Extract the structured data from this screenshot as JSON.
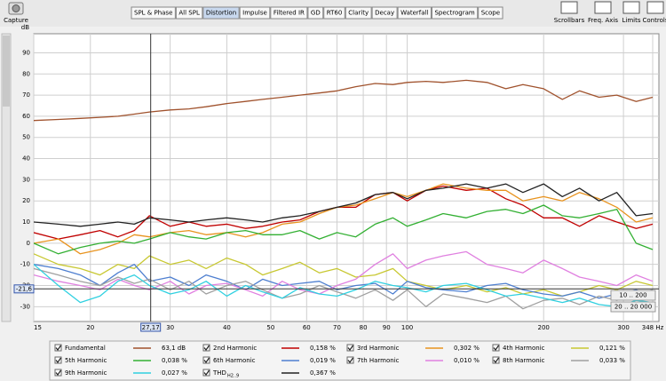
{
  "toolbar": {
    "capture": "Capture",
    "tabs": [
      "SPL & Phase",
      "All SPL",
      "Distortion",
      "Impulse",
      "Filtered IR",
      "GD",
      "RT60",
      "Clarity",
      "Decay",
      "Waterfall",
      "Spectrogram",
      "Scope"
    ],
    "active": 2,
    "tools": [
      "Scrollbars",
      "Freq. Axis",
      "Limits",
      "Controls"
    ]
  },
  "chart_data": {
    "type": "line",
    "ylabel": "dB",
    "log_x": true,
    "grid": true,
    "xlim": [
      15,
      348
    ],
    "ylim": [
      -37,
      99
    ],
    "xticks": [
      15,
      20,
      30,
      40,
      50,
      60,
      70,
      80,
      90,
      100,
      200,
      300,
      {
        "value": 348,
        "label": "348 Hz"
      }
    ],
    "yticks": [
      -30,
      -20,
      -10,
      0,
      10,
      20,
      30,
      40,
      50,
      60,
      70,
      80,
      90
    ],
    "cursor": {
      "x": 27.17,
      "y": -21.6,
      "x_label": "27,17",
      "y_label": "-21,6"
    },
    "range_presets": [
      "10 .. 200",
      "20 .. 20 000"
    ],
    "x": [
      15,
      17,
      19,
      21,
      23,
      25,
      27,
      30,
      33,
      36,
      40,
      44,
      48,
      53,
      58,
      64,
      70,
      77,
      85,
      93,
      100,
      110,
      120,
      135,
      150,
      165,
      180,
      200,
      220,
      240,
      265,
      290,
      320,
      348
    ],
    "series": [
      {
        "name": "Fundamental",
        "color": "#a0522d",
        "readout": "63,1 dB",
        "values": [
          58,
          58.5,
          59,
          59.5,
          60,
          61,
          62,
          63,
          63.5,
          64.5,
          66,
          67,
          68,
          69,
          70,
          71,
          72,
          74,
          75.5,
          75,
          76,
          76.5,
          76,
          77,
          76,
          73,
          75,
          73,
          68,
          72,
          69,
          70,
          67,
          69
        ]
      },
      {
        "name": "2nd Harmonic",
        "color": "#c00000",
        "readout": "0,158 %",
        "values": [
          5,
          2,
          4,
          6,
          3,
          6,
          13,
          8,
          10,
          8,
          9,
          7,
          8,
          10,
          11,
          15,
          17,
          17,
          23,
          24,
          20,
          25,
          27,
          25,
          26,
          21,
          18,
          12,
          12,
          8,
          13,
          10,
          7,
          9
        ]
      },
      {
        "name": "3rd Harmonic",
        "color": "#e8931e",
        "readout": "0,302 %",
        "values": [
          0,
          2,
          -5,
          -3,
          0,
          4,
          3,
          5,
          6,
          4,
          5,
          3,
          5,
          9,
          10,
          14,
          17,
          18,
          21,
          24,
          22,
          25,
          28,
          26,
          25,
          25,
          20,
          22,
          20,
          24,
          21,
          17,
          10,
          12
        ]
      },
      {
        "name": "4th Harmonic",
        "color": "#c8c832",
        "readout": "0,121 %",
        "values": [
          -5,
          -10,
          -12,
          -15,
          -10,
          -12,
          -6,
          -10,
          -8,
          -12,
          -7,
          -10,
          -15,
          -12,
          -9,
          -14,
          -12,
          -16,
          -15,
          -12,
          -18,
          -20,
          -22,
          -20,
          -23,
          -21,
          -24,
          -22,
          -25,
          -23,
          -20,
          -22,
          -18,
          -20
        ]
      },
      {
        "name": "5th Harmonic",
        "color": "#33b033",
        "readout": "0,038 %",
        "values": [
          0,
          -5,
          -2,
          0,
          1,
          0,
          2,
          5,
          3,
          2,
          5,
          6,
          4,
          4,
          6,
          2,
          5,
          3,
          9,
          12,
          8,
          11,
          14,
          12,
          15,
          16,
          14,
          18,
          13,
          12,
          14,
          16,
          0,
          -3
        ]
      },
      {
        "name": "6th Harmonic",
        "color": "#4e7fd0",
        "readout": "0,019 %",
        "values": [
          -10,
          -12,
          -15,
          -20,
          -14,
          -10,
          -18,
          -16,
          -20,
          -15,
          -18,
          -22,
          -17,
          -20,
          -19,
          -18,
          -22,
          -20,
          -19,
          -24,
          -18,
          -21,
          -22,
          -23,
          -20,
          -19,
          -22,
          -24,
          -25,
          -23,
          -26,
          -24,
          -22,
          -25
        ]
      },
      {
        "name": "7th Harmonic",
        "color": "#e080e0",
        "readout": "0,010 %",
        "values": [
          -15,
          -18,
          -20,
          -22,
          -17,
          -20,
          -22,
          -18,
          -24,
          -20,
          -19,
          -22,
          -25,
          -18,
          -22,
          -24,
          -20,
          -17,
          -10,
          -5,
          -12,
          -8,
          -6,
          -4,
          -10,
          -12,
          -14,
          -8,
          -12,
          -16,
          -18,
          -20,
          -15,
          -18
        ]
      },
      {
        "name": "8th Harmonic",
        "color": "#a0a0a0",
        "readout": "0,033 %",
        "values": [
          -12,
          -15,
          -18,
          -20,
          -16,
          -19,
          -17,
          -22,
          -18,
          -24,
          -20,
          -18,
          -22,
          -26,
          -24,
          -20,
          -23,
          -26,
          -22,
          -27,
          -22,
          -30,
          -24,
          -26,
          -28,
          -25,
          -31,
          -27,
          -26,
          -29,
          -25,
          -27,
          -24,
          -22
        ]
      },
      {
        "name": "9th Harmonic",
        "color": "#30d0e0",
        "readout": "0,027 %",
        "values": [
          -10,
          -20,
          -28,
          -25,
          -18,
          -15,
          -20,
          -24,
          -22,
          -18,
          -25,
          -20,
          -23,
          -26,
          -21,
          -24,
          -25,
          -22,
          -18,
          -20,
          -21,
          -23,
          -20,
          -19,
          -22,
          -25,
          -24,
          -26,
          -28,
          -26,
          -29,
          -30,
          -27,
          -28
        ]
      },
      {
        "name": "THD",
        "name_sub": "H2..9",
        "color": "#222222",
        "readout": "0,367 %",
        "values": [
          10,
          9,
          8,
          9,
          10,
          9,
          12,
          11,
          10,
          11,
          12,
          11,
          10,
          12,
          13,
          15,
          17,
          19,
          23,
          24,
          21,
          25,
          26,
          28,
          26,
          28,
          24,
          28,
          22,
          26,
          20,
          24,
          13,
          14
        ]
      }
    ]
  }
}
